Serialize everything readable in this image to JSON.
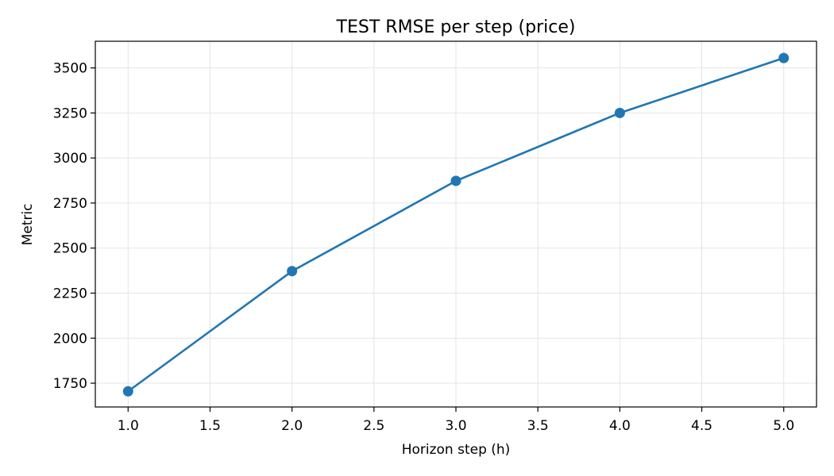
{
  "chart_data": {
    "type": "line",
    "title": "TEST RMSE per step (price)",
    "xlabel": "Horizon step (h)",
    "ylabel": "Metric",
    "xlim": [
      0.8,
      5.2
    ],
    "ylim": [
      1618,
      3648
    ],
    "grid": true,
    "xticks": [
      1.0,
      1.5,
      2.0,
      2.5,
      3.0,
      3.5,
      4.0,
      4.5,
      5.0
    ],
    "xtick_labels": [
      "1.0",
      "1.5",
      "2.0",
      "2.5",
      "3.0",
      "3.5",
      "4.0",
      "4.5",
      "5.0"
    ],
    "yticks": [
      1750,
      2000,
      2250,
      2500,
      2750,
      3000,
      3250,
      3500
    ],
    "ytick_labels": [
      "1750",
      "2000",
      "2250",
      "2500",
      "2750",
      "3000",
      "3250",
      "3500"
    ],
    "series": [
      {
        "color": "#1f77b4",
        "marker": "circle",
        "x": [
          1,
          2,
          3,
          4,
          5
        ],
        "y": [
          1705,
          2372,
          2873,
          3250,
          3555
        ]
      }
    ]
  }
}
